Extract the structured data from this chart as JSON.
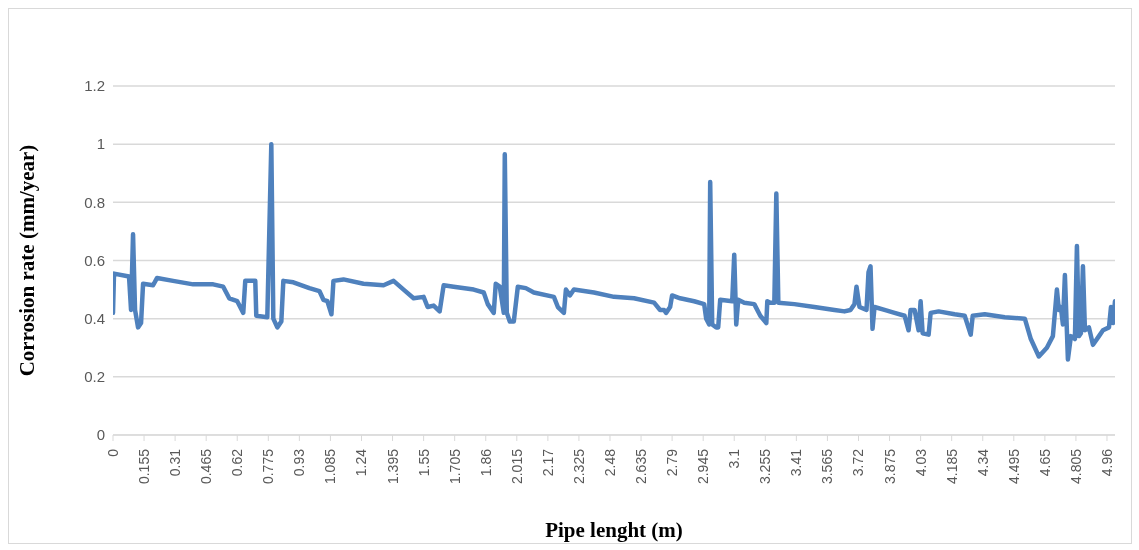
{
  "chart_data": {
    "type": "line",
    "xlabel": "Pipe lenght (m)",
    "ylabel": "Corrosion rate (mm/year)",
    "x": [
      0,
      0.005,
      0.08,
      0.09,
      0.1,
      0.11,
      0.125,
      0.14,
      0.15,
      0.2,
      0.22,
      0.3,
      0.4,
      0.5,
      0.55,
      0.58,
      0.62,
      0.65,
      0.66,
      0.71,
      0.715,
      0.77,
      0.79,
      0.8,
      0.82,
      0.84,
      0.85,
      0.9,
      0.98,
      1.03,
      1.05,
      1.07,
      1.09,
      1.1,
      1.15,
      1.25,
      1.35,
      1.4,
      1.45,
      1.5,
      1.55,
      1.57,
      1.6,
      1.63,
      1.65,
      1.7,
      1.8,
      1.85,
      1.87,
      1.9,
      1.91,
      1.93,
      1.95,
      1.955,
      1.965,
      1.98,
      2.0,
      2.02,
      2.06,
      2.1,
      2.2,
      2.22,
      2.25,
      2.26,
      2.28,
      2.3,
      2.4,
      2.5,
      2.6,
      2.7,
      2.73,
      2.75,
      2.76,
      2.78,
      2.79,
      2.83,
      2.9,
      2.95,
      2.96,
      2.975,
      2.98,
      2.99,
      3.01,
      3.02,
      3.03,
      3.09,
      3.1,
      3.11,
      3.12,
      3.15,
      3.2,
      3.23,
      3.26,
      3.265,
      3.28,
      3.3,
      3.31,
      3.32,
      3.4,
      3.5,
      3.6,
      3.65,
      3.68,
      3.7,
      3.71,
      3.725,
      3.76,
      3.77,
      3.78,
      3.79,
      3.8,
      3.85,
      3.9,
      3.95,
      3.97,
      3.98,
      4.0,
      4.02,
      4.03,
      4.04,
      4.07,
      4.08,
      4.12,
      4.2,
      4.25,
      4.28,
      4.29,
      4.35,
      4.4,
      4.45,
      4.55,
      4.58,
      4.62,
      4.66,
      4.69,
      4.71,
      4.72,
      4.73,
      4.74,
      4.75,
      4.765,
      4.78,
      4.8,
      4.81,
      4.82,
      4.83,
      4.84,
      4.85,
      4.87,
      4.89,
      4.92,
      4.94,
      4.97,
      4.98,
      4.99,
      5.0
    ],
    "series": [
      {
        "color": "#4f81bd",
        "values": [
          0.42,
          0.555,
          0.545,
          0.43,
          0.69,
          0.43,
          0.37,
          0.385,
          0.52,
          0.515,
          0.54,
          0.53,
          0.518,
          0.518,
          0.51,
          0.47,
          0.46,
          0.42,
          0.53,
          0.53,
          0.41,
          0.405,
          1.0,
          0.4,
          0.37,
          0.39,
          0.53,
          0.525,
          0.505,
          0.495,
          0.465,
          0.46,
          0.415,
          0.53,
          0.535,
          0.52,
          0.515,
          0.53,
          0.5,
          0.47,
          0.475,
          0.44,
          0.445,
          0.425,
          0.515,
          0.51,
          0.5,
          0.49,
          0.45,
          0.42,
          0.52,
          0.51,
          0.42,
          0.965,
          0.42,
          0.39,
          0.39,
          0.51,
          0.505,
          0.49,
          0.475,
          0.44,
          0.42,
          0.5,
          0.48,
          0.5,
          0.49,
          0.475,
          0.47,
          0.455,
          0.43,
          0.43,
          0.42,
          0.44,
          0.48,
          0.47,
          0.46,
          0.45,
          0.4,
          0.38,
          0.87,
          0.38,
          0.37,
          0.37,
          0.465,
          0.46,
          0.62,
          0.38,
          0.465,
          0.455,
          0.45,
          0.41,
          0.385,
          0.46,
          0.455,
          0.455,
          0.83,
          0.455,
          0.45,
          0.44,
          0.43,
          0.425,
          0.43,
          0.45,
          0.51,
          0.44,
          0.43,
          0.56,
          0.58,
          0.365,
          0.44,
          0.43,
          0.42,
          0.41,
          0.36,
          0.43,
          0.43,
          0.36,
          0.46,
          0.35,
          0.345,
          0.42,
          0.425,
          0.415,
          0.41,
          0.345,
          0.41,
          0.415,
          0.41,
          0.405,
          0.4,
          0.33,
          0.27,
          0.3,
          0.34,
          0.5,
          0.43,
          0.44,
          0.38,
          0.55,
          0.26,
          0.34,
          0.33,
          0.65,
          0.34,
          0.35,
          0.58,
          0.36,
          0.37,
          0.31,
          0.34,
          0.36,
          0.37,
          0.44,
          0.385,
          0.46
        ]
      }
    ],
    "xlim": [
      0,
      5
    ],
    "xticks": [
      0,
      0.155,
      0.31,
      0.465,
      0.62,
      0.775,
      0.93,
      1.085,
      1.24,
      1.395,
      1.55,
      1.705,
      1.86,
      2.015,
      2.17,
      2.325,
      2.48,
      2.635,
      2.79,
      2.945,
      3.1,
      3.255,
      3.41,
      3.565,
      3.72,
      3.875,
      4.03,
      4.185,
      4.34,
      4.495,
      4.65,
      4.805,
      4.96
    ],
    "ylim": [
      0,
      1.2
    ],
    "yticks": [
      0,
      0.2,
      0.4,
      0.6,
      0.8,
      1,
      1.2
    ],
    "grid": "y",
    "legend": false,
    "marker": "none",
    "line_style": "solid"
  }
}
